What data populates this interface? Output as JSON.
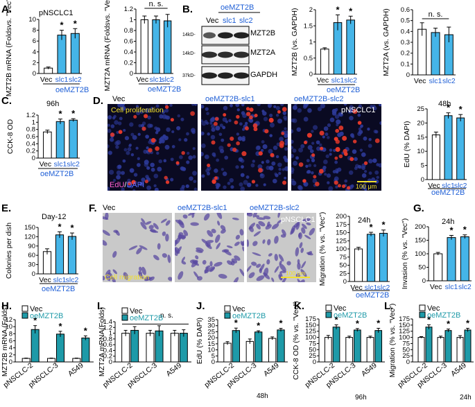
{
  "colors": {
    "vec": "#ffffff",
    "oe": "#45b5e8",
    "oe_dark": "#1e9aa8",
    "label_blue": "#1f5fd6",
    "axis": "#000000",
    "micro_bg": "#0a0a22",
    "nucleus": "#2d3a9a",
    "edu": "#e8392a",
    "migr_bg": "#c9c9c9",
    "migr_cell": "#5a4aa0",
    "cap_yellow": "#f2e02a"
  },
  "panels": {
    "A": {
      "label": "A.",
      "line": "pNSCLC1",
      "group": "oeMZT2B"
    },
    "B": {
      "label": "B.",
      "group": "oeMZT2B",
      "blot_lanes": [
        "Vec",
        "slc1",
        "slc2"
      ],
      "markers": [
        "14kD-",
        "14kD-",
        "37kD-"
      ],
      "proteins": [
        "MZT2B",
        "MZT2A",
        "GAPDH"
      ]
    },
    "C": {
      "label": "C.",
      "time": "96h",
      "group": "oeMZT2B"
    },
    "D": {
      "label": "D.",
      "titles": [
        "Vec",
        "oeMZT2B-slc1",
        "oeMZT2B-slc2"
      ],
      "cap_left": "Cell proliferation",
      "cap_right": "pNSCLC1",
      "stain_a": "EdU",
      "stain_sep": "/",
      "stain_b": "DAPI",
      "scale": "100 μm",
      "time": "48h",
      "group": "oeMZT2B"
    },
    "E": {
      "label": "E.",
      "time": "Day-12",
      "group": "oeMZT2B"
    },
    "F": {
      "label": "F.",
      "titles": [
        "Vec",
        "oeMZT2B-slc1",
        "oeMZT2B-slc2"
      ],
      "cap_left": "Cell migration",
      "cap_right": "pNSCLC1",
      "scale": "100 μm",
      "time": "24h",
      "group": "oeMZT2B"
    },
    "G": {
      "label": "G.",
      "time": "24h"
    },
    "H": {
      "label": "H."
    },
    "I": {
      "label": "I.",
      "ns": "n. s."
    },
    "J": {
      "label": "J.",
      "time": "48h"
    },
    "K": {
      "label": "K.",
      "time": "96h"
    },
    "L": {
      "label": "L.",
      "time": "24h"
    }
  },
  "legend": {
    "vec": "Vec",
    "oe": "oeMZT2B"
  },
  "ns": "n. s.",
  "chart_data": [
    {
      "id": "A1",
      "type": "bar",
      "ylabel": "MZT2B mRNA (Foldsvs. \"Vec\")",
      "ylim": [
        0,
        10
      ],
      "yticks": [
        0,
        2,
        4,
        6,
        8,
        10
      ],
      "categories": [
        "Vec",
        "slc1",
        "slc2"
      ],
      "values": [
        1.0,
        7.1,
        7.4
      ],
      "errors": [
        0.2,
        0.9,
        0.9
      ],
      "sig": [
        "",
        "*",
        "*"
      ]
    },
    {
      "id": "A2",
      "type": "bar",
      "ylabel": "MZT2A mRNA (Foldsvs. \"Vec\")",
      "ylim": [
        0,
        1.2
      ],
      "yticks": [
        0,
        0.2,
        0.4,
        0.6,
        0.8,
        1.0,
        1.2
      ],
      "categories": [
        "Vec",
        "slc1",
        "slc2"
      ],
      "values": [
        1.0,
        1.0,
        0.98
      ],
      "errors": [
        0.07,
        0.07,
        0.12
      ],
      "sig": [
        "",
        "",
        ""
      ]
    },
    {
      "id": "B1",
      "type": "bar",
      "ylabel": "MZT2B (vs. GAPDH)",
      "ylim": [
        0,
        2
      ],
      "yticks": [
        0,
        0.5,
        1.0,
        1.5,
        2.0
      ],
      "categories": [
        "Vec",
        "slc1",
        "slc2"
      ],
      "values": [
        0.78,
        1.6,
        1.68
      ],
      "errors": [
        0.04,
        0.24,
        0.12
      ],
      "sig": [
        "",
        "*",
        "*"
      ]
    },
    {
      "id": "B2",
      "type": "bar",
      "ylabel": "MZT2A (vs. GAPDH)",
      "ylim": [
        0,
        0.6
      ],
      "yticks": [
        0,
        0.1,
        0.2,
        0.3,
        0.4,
        0.5,
        0.6
      ],
      "categories": [
        "Vec",
        "slc1",
        "slc2"
      ],
      "values": [
        0.42,
        0.39,
        0.37
      ],
      "errors": [
        0.06,
        0.04,
        0.07
      ],
      "sig": [
        "",
        "",
        ""
      ]
    },
    {
      "id": "C",
      "type": "bar",
      "ylabel": "CCK-8 OD",
      "ylim": [
        0,
        1.2
      ],
      "yticks": [
        0,
        0.2,
        0.4,
        0.6,
        0.8,
        1.0,
        1.2
      ],
      "categories": [
        "Vec",
        "slc1",
        "slc2"
      ],
      "values": [
        0.73,
        1.02,
        1.06
      ],
      "errors": [
        0.05,
        0.07,
        0.04
      ],
      "sig": [
        "",
        "*",
        "*"
      ]
    },
    {
      "id": "D",
      "type": "bar",
      "ylabel": "EdU (% DAPI)",
      "ylim": [
        0,
        25
      ],
      "yticks": [
        0,
        5,
        10,
        15,
        20,
        25
      ],
      "categories": [
        "Vec",
        "slc1",
        "slc2"
      ],
      "values": [
        15.8,
        22.6,
        21.8
      ],
      "errors": [
        1.0,
        1.0,
        1.2
      ],
      "sig": [
        "",
        "*",
        "*"
      ]
    },
    {
      "id": "E",
      "type": "bar",
      "ylabel": "Colonies per dish",
      "ylim": [
        0,
        150
      ],
      "yticks": [
        0,
        30,
        60,
        90,
        120,
        150
      ],
      "categories": [
        "Vec",
        "slc1",
        "slc2"
      ],
      "values": [
        72,
        126,
        121
      ],
      "errors": [
        9,
        10,
        11
      ],
      "sig": [
        "",
        "*",
        "*"
      ]
    },
    {
      "id": "F",
      "type": "bar",
      "ylabel": "Migration (% vs. \"Vec\")",
      "ylim": [
        0,
        200
      ],
      "yticks": [
        0,
        25,
        50,
        75,
        100,
        125,
        150,
        175,
        200
      ],
      "categories": [
        "Vec",
        "slc1",
        "slc2"
      ],
      "values": [
        100,
        145,
        148
      ],
      "errors": [
        5,
        6,
        10
      ],
      "sig": [
        "",
        "*",
        "*"
      ]
    },
    {
      "id": "G",
      "type": "bar",
      "ylabel": "Invasion (% vs. \"Vec\")",
      "ylim": [
        0,
        200
      ],
      "yticks": [
        0,
        50,
        100,
        150,
        200
      ],
      "categories": [
        "Vec",
        "slc1",
        "slc2"
      ],
      "values": [
        100,
        160,
        163
      ],
      "errors": [
        5,
        8,
        7
      ],
      "sig": [
        "",
        "*",
        "*"
      ]
    },
    {
      "id": "H",
      "type": "bar",
      "ylabel": "MZT2B mRNA (Folds)",
      "ylim": [
        0,
        12
      ],
      "yticks": [
        0,
        2,
        4,
        6,
        8,
        10,
        12
      ],
      "categories": [
        "pNSCLC-2",
        "pNSCLC-3",
        "A549"
      ],
      "series": [
        {
          "name": "Vec",
          "values": [
            1.0,
            1.0,
            1.0
          ],
          "errors": [
            0.1,
            0.1,
            0.1
          ]
        },
        {
          "name": "oeMZT2B",
          "values": [
            9.2,
            7.9,
            6.8
          ],
          "errors": [
            1.1,
            0.8,
            0.6
          ]
        }
      ],
      "sig": [
        "*",
        "*",
        "*"
      ]
    },
    {
      "id": "I",
      "type": "bar",
      "ylabel": "MZT2A mRNA(Folds)",
      "ylim": [
        0,
        1.4
      ],
      "yticks": [
        0,
        0.2,
        0.4,
        0.6,
        0.8,
        1.0,
        1.2,
        1.4
      ],
      "categories": [
        "pNSCLC-2",
        "pNSCLC-3",
        "A549"
      ],
      "series": [
        {
          "name": "Vec",
          "values": [
            1.0,
            1.0,
            1.0
          ],
          "errors": [
            0.1,
            0.1,
            0.1
          ]
        },
        {
          "name": "oeMZT2B",
          "values": [
            1.1,
            1.08,
            1.0
          ],
          "errors": [
            0.13,
            0.18,
            0.12
          ]
        }
      ],
      "sig": [
        "",
        "",
        ""
      ]
    },
    {
      "id": "J",
      "type": "bar",
      "ylabel": "EdU (% DAPI)",
      "ylim": [
        0,
        35
      ],
      "yticks": [
        0,
        5,
        10,
        15,
        20,
        25,
        30,
        35
      ],
      "categories": [
        "pNSCLC-2",
        "pNSCLC-3",
        "A549"
      ],
      "series": [
        {
          "name": "Vec",
          "values": [
            15.5,
            17.0,
            19.5
          ],
          "errors": [
            1.3,
            2.0,
            1.2
          ]
        },
        {
          "name": "oeMZT2B",
          "values": [
            26.0,
            24.8,
            26.5
          ],
          "errors": [
            2.0,
            1.0,
            1.3
          ]
        }
      ],
      "sig": [
        "*",
        "*",
        "*"
      ]
    },
    {
      "id": "K",
      "type": "bar",
      "ylabel": "CCK-8 OD (% vs. \"Vec\")",
      "ylim": [
        0,
        175
      ],
      "yticks": [
        0,
        25,
        50,
        75,
        100,
        125,
        150,
        175
      ],
      "categories": [
        "pNSCLC-2",
        "pNSCLC-3",
        "A549"
      ],
      "series": [
        {
          "name": "Vec",
          "values": [
            100,
            100,
            100
          ],
          "errors": [
            8,
            5,
            5
          ]
        },
        {
          "name": "oeMZT2B",
          "values": [
            142,
            130,
            128
          ],
          "errors": [
            9,
            6,
            9
          ]
        }
      ],
      "sig": [
        "*",
        "*",
        "*"
      ]
    },
    {
      "id": "L",
      "type": "bar",
      "ylabel": "Migration (% vs. \"Vec\")",
      "ylim": [
        0,
        175
      ],
      "yticks": [
        0,
        25,
        50,
        75,
        100,
        125,
        150,
        175
      ],
      "categories": [
        "pNSCLC-2",
        "pNSCLC-3",
        "A549"
      ],
      "series": [
        {
          "name": "Vec",
          "values": [
            100,
            100,
            100
          ],
          "errors": [
            3,
            5,
            7
          ]
        },
        {
          "name": "oeMZT2B",
          "values": [
            142,
            128,
            130
          ],
          "errors": [
            9,
            6,
            7
          ]
        }
      ],
      "sig": [
        "*",
        "*",
        "*"
      ]
    }
  ]
}
